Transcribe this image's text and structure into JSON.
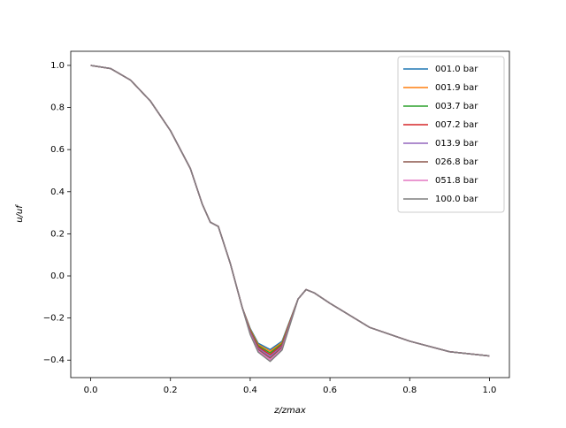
{
  "chart_data": {
    "type": "line",
    "xlabel": "z/zmax",
    "ylabel": "u/uf",
    "x": [
      0,
      0.05,
      0.1,
      0.15,
      0.2,
      0.25,
      0.28,
      0.3,
      0.32,
      0.35,
      0.38,
      0.4,
      0.42,
      0.45,
      0.48,
      0.5,
      0.52,
      0.54,
      0.56,
      0.6,
      0.7,
      0.8,
      0.9,
      1.0
    ],
    "series": [
      {
        "name": "001.0 bar",
        "color": "#1f77b4",
        "values": [
          1.0,
          0.985,
          0.93,
          0.83,
          0.69,
          0.51,
          0.34,
          0.255,
          0.235,
          0.06,
          -0.15,
          -0.25,
          -0.32,
          -0.35,
          -0.31,
          -0.21,
          -0.11,
          -0.065,
          -0.08,
          -0.13,
          -0.245,
          -0.31,
          -0.36,
          -0.38
        ]
      },
      {
        "name": "001.9 bar",
        "color": "#ff7f0e",
        "values": [
          1.0,
          0.985,
          0.93,
          0.83,
          0.69,
          0.51,
          0.34,
          0.255,
          0.235,
          0.06,
          -0.15,
          -0.254,
          -0.326,
          -0.358,
          -0.316,
          -0.213,
          -0.11,
          -0.065,
          -0.08,
          -0.13,
          -0.245,
          -0.31,
          -0.36,
          -0.38
        ]
      },
      {
        "name": "003.7 bar",
        "color": "#2ca02c",
        "values": [
          1.0,
          0.985,
          0.93,
          0.83,
          0.69,
          0.51,
          0.34,
          0.255,
          0.235,
          0.06,
          -0.15,
          -0.258,
          -0.332,
          -0.366,
          -0.322,
          -0.216,
          -0.11,
          -0.065,
          -0.08,
          -0.13,
          -0.245,
          -0.31,
          -0.36,
          -0.38
        ]
      },
      {
        "name": "007.2 bar",
        "color": "#d62728",
        "values": [
          1.0,
          0.985,
          0.93,
          0.83,
          0.69,
          0.51,
          0.34,
          0.255,
          0.235,
          0.06,
          -0.15,
          -0.262,
          -0.338,
          -0.374,
          -0.328,
          -0.219,
          -0.11,
          -0.065,
          -0.08,
          -0.13,
          -0.245,
          -0.31,
          -0.36,
          -0.38
        ]
      },
      {
        "name": "013.9 bar",
        "color": "#9467bd",
        "values": [
          1.0,
          0.985,
          0.93,
          0.83,
          0.69,
          0.51,
          0.34,
          0.255,
          0.235,
          0.06,
          -0.15,
          -0.266,
          -0.344,
          -0.382,
          -0.334,
          -0.222,
          -0.11,
          -0.065,
          -0.08,
          -0.13,
          -0.245,
          -0.31,
          -0.36,
          -0.38
        ]
      },
      {
        "name": "026.8 bar",
        "color": "#8c564b",
        "values": [
          1.0,
          0.985,
          0.93,
          0.83,
          0.69,
          0.51,
          0.34,
          0.255,
          0.235,
          0.06,
          -0.15,
          -0.27,
          -0.35,
          -0.39,
          -0.34,
          -0.225,
          -0.11,
          -0.065,
          -0.08,
          -0.13,
          -0.245,
          -0.31,
          -0.36,
          -0.38
        ]
      },
      {
        "name": "051.8 bar",
        "color": "#e377c2",
        "values": [
          1.0,
          0.985,
          0.93,
          0.83,
          0.69,
          0.51,
          0.34,
          0.255,
          0.235,
          0.06,
          -0.15,
          -0.274,
          -0.356,
          -0.398,
          -0.346,
          -0.228,
          -0.11,
          -0.065,
          -0.08,
          -0.13,
          -0.245,
          -0.31,
          -0.36,
          -0.38
        ]
      },
      {
        "name": "100.0 bar",
        "color": "#7f7f7f",
        "values": [
          1.0,
          0.985,
          0.93,
          0.83,
          0.69,
          0.51,
          0.34,
          0.255,
          0.235,
          0.06,
          -0.15,
          -0.278,
          -0.362,
          -0.406,
          -0.352,
          -0.231,
          -0.11,
          -0.065,
          -0.08,
          -0.13,
          -0.245,
          -0.31,
          -0.36,
          -0.38
        ]
      }
    ],
    "xlim": [
      -0.05,
      1.05
    ],
    "ylim": [
      -0.483,
      1.067
    ],
    "xticks": [
      {
        "value": 0,
        "label": "0.0"
      },
      0.2,
      0.4,
      0.6,
      0.8,
      {
        "value": 1,
        "label": "1.0"
      }
    ],
    "yticks": [
      {
        "value": -0.4,
        "label": "−0.4"
      },
      {
        "value": -0.2,
        "label": "−0.2"
      },
      {
        "value": 0,
        "label": "0.0"
      },
      0.2,
      0.4,
      0.6,
      0.8,
      {
        "value": 1,
        "label": "1.0"
      }
    ],
    "grid": false,
    "legend": "upper right"
  }
}
